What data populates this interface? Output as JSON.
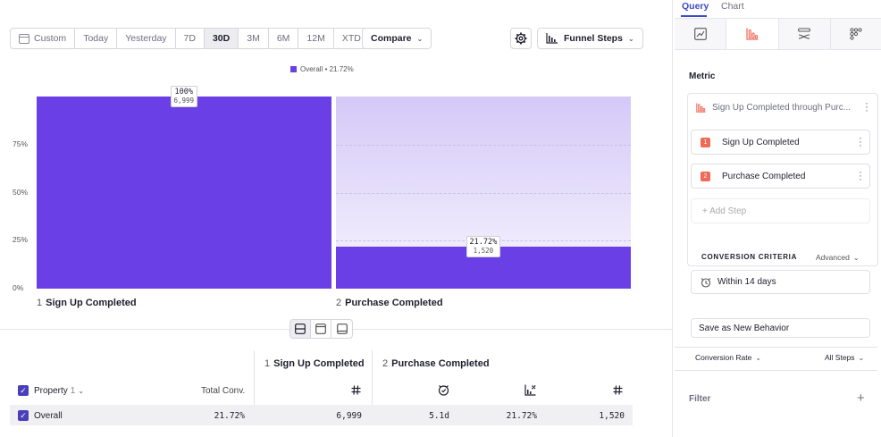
{
  "toolbar": {
    "date_segments": [
      {
        "label": "Custom",
        "icon": "calendar-icon"
      },
      {
        "label": "Today"
      },
      {
        "label": "Yesterday"
      },
      {
        "label": "7D"
      },
      {
        "label": "30D",
        "active": true
      },
      {
        "label": "3M"
      },
      {
        "label": "6M"
      },
      {
        "label": "12M"
      },
      {
        "label": "XTD"
      }
    ],
    "compare_label": "Compare",
    "chart_type_label": "Funnel Steps"
  },
  "legend": {
    "label": "Overall • 21.72%",
    "color": "#6b3fe6"
  },
  "chart_data": {
    "type": "bar",
    "categories": [
      "Sign Up Completed",
      "Purchase Completed"
    ],
    "step_numbers": [
      "1",
      "2"
    ],
    "series": [
      {
        "name": "Overall",
        "values": [
          100,
          21.72
        ],
        "counts": [
          "6,999",
          "1,520"
        ]
      }
    ],
    "value_labels": [
      "100%",
      "21.72%"
    ],
    "y_ticks": [
      "0%",
      "25%",
      "50%",
      "75%"
    ],
    "ylim": [
      0,
      100
    ],
    "bar_color": "#6b3fe6"
  },
  "table": {
    "header_property": "Property",
    "header_property_count": "1",
    "header_total_conv": "Total Conv.",
    "step_headers": [
      {
        "num": "1",
        "label": "Sign Up Completed"
      },
      {
        "num": "2",
        "label": "Purchase Completed"
      }
    ],
    "rows": [
      {
        "name": "Overall",
        "total_conv": "21.72%",
        "step1_count": "6,999",
        "step2_time": "5.1d",
        "step2_rate": "21.72%",
        "step2_count": "1,520"
      }
    ]
  },
  "panel": {
    "tabs": [
      "Query",
      "Chart"
    ],
    "metric_label": "Metric",
    "metric_summary": "Sign Up Completed through Purc...",
    "steps": [
      {
        "num": "1",
        "label": "Sign Up Completed"
      },
      {
        "num": "2",
        "label": "Purchase Completed"
      }
    ],
    "add_step": "+ Add Step",
    "conversion_criteria": "CONVERSION CRITERIA",
    "advanced": "Advanced",
    "window": "Within 14 days",
    "save_behavior": "Save as New Behavior",
    "conversion_rate": "Conversion Rate",
    "all_steps": "All Steps",
    "filter": "Filter",
    "accent": "#3d4bc7",
    "step_badge_color": "#ef6a57"
  }
}
